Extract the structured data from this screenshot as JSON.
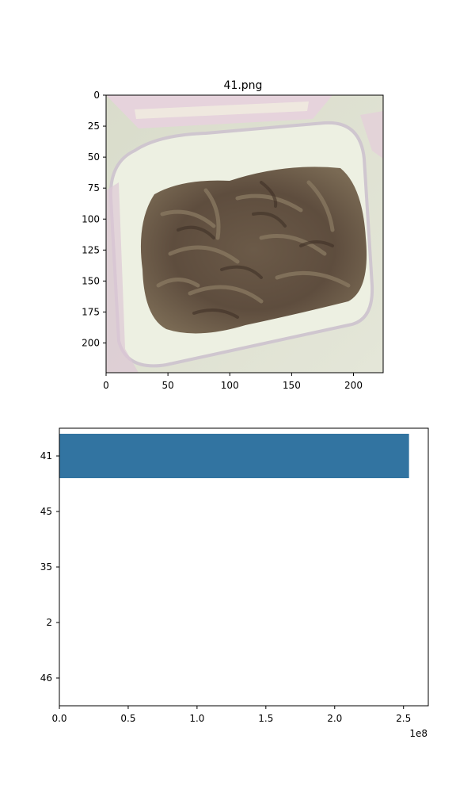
{
  "chart_data": [
    {
      "type": "image",
      "title": "41.png",
      "xlim": [
        0,
        224
      ],
      "ylim": [
        224,
        0
      ],
      "x_ticks": [
        0,
        50,
        100,
        150,
        200
      ],
      "y_ticks": [
        0,
        25,
        50,
        75,
        100,
        125,
        150,
        175,
        200
      ],
      "image_content": "photo of shredded cooked meat in a white plastic tray"
    },
    {
      "type": "bar",
      "orientation": "horizontal",
      "categories": [
        "41",
        "45",
        "35",
        "2",
        "46"
      ],
      "values": [
        254000000,
        0,
        0,
        0,
        0
      ],
      "xlim": [
        0,
        268000000
      ],
      "x_ticks": [
        0,
        0.5,
        1.0,
        1.5,
        2.0,
        2.5
      ],
      "x_tick_labels": [
        "0.0",
        "0.5",
        "1.0",
        "1.5",
        "2.0",
        "2.5"
      ],
      "x_offset_label": "1e8",
      "bar_color": "#3274a1"
    }
  ]
}
